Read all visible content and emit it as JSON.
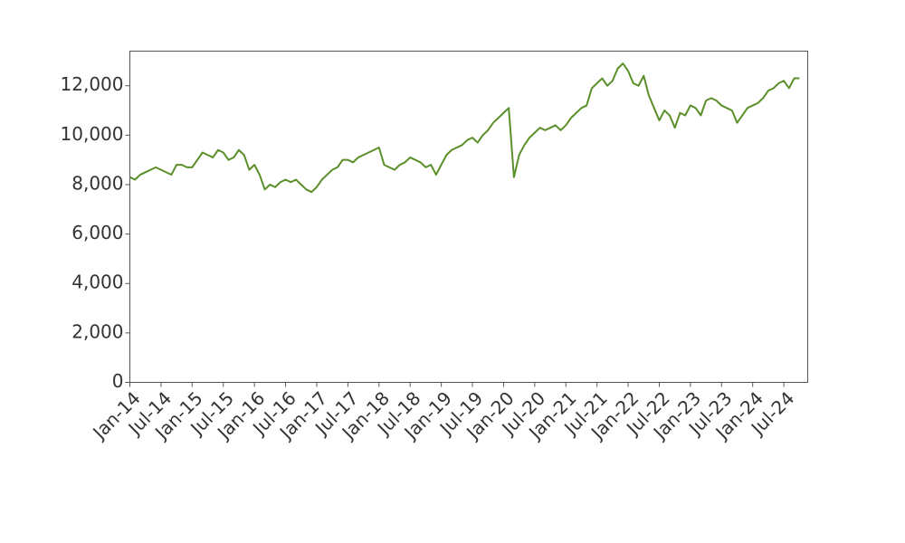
{
  "chart_data": {
    "type": "line",
    "x": [
      "Jan-14",
      "Feb-14",
      "Mar-14",
      "Apr-14",
      "May-14",
      "Jun-14",
      "Jul-14",
      "Aug-14",
      "Sep-14",
      "Oct-14",
      "Nov-14",
      "Dec-14",
      "Jan-15",
      "Feb-15",
      "Mar-15",
      "Apr-15",
      "May-15",
      "Jun-15",
      "Jul-15",
      "Aug-15",
      "Sep-15",
      "Oct-15",
      "Nov-15",
      "Dec-15",
      "Jan-16",
      "Feb-16",
      "Mar-16",
      "Apr-16",
      "May-16",
      "Jun-16",
      "Jul-16",
      "Aug-16",
      "Sep-16",
      "Oct-16",
      "Nov-16",
      "Dec-16",
      "Jan-17",
      "Feb-17",
      "Mar-17",
      "Apr-17",
      "May-17",
      "Jun-17",
      "Jul-17",
      "Aug-17",
      "Sep-17",
      "Oct-17",
      "Nov-17",
      "Dec-17",
      "Jan-18",
      "Feb-18",
      "Mar-18",
      "Apr-18",
      "May-18",
      "Jun-18",
      "Jul-18",
      "Aug-18",
      "Sep-18",
      "Oct-18",
      "Nov-18",
      "Dec-18",
      "Jan-19",
      "Feb-19",
      "Mar-19",
      "Apr-19",
      "May-19",
      "Jun-19",
      "Jul-19",
      "Aug-19",
      "Sep-19",
      "Oct-19",
      "Nov-19",
      "Dec-19",
      "Jan-20",
      "Feb-20",
      "Mar-20",
      "Apr-20",
      "May-20",
      "Jun-20",
      "Jul-20",
      "Aug-20",
      "Sep-20",
      "Oct-20",
      "Nov-20",
      "Dec-20",
      "Jan-21",
      "Feb-21",
      "Mar-21",
      "Apr-21",
      "May-21",
      "Jun-21",
      "Jul-21",
      "Aug-21",
      "Sep-21",
      "Oct-21",
      "Nov-21",
      "Dec-21",
      "Jan-22",
      "Feb-22",
      "Mar-22",
      "Apr-22",
      "May-22",
      "Jun-22",
      "Jul-22",
      "Aug-22",
      "Sep-22",
      "Oct-22",
      "Nov-22",
      "Dec-22",
      "Jan-23",
      "Feb-23",
      "Mar-23",
      "Apr-23",
      "May-23",
      "Jun-23",
      "Jul-23",
      "Aug-23",
      "Sep-23",
      "Oct-23",
      "Nov-23",
      "Dec-23",
      "Jan-24",
      "Feb-24",
      "Mar-24",
      "Apr-24",
      "May-24",
      "Jun-24",
      "Jul-24",
      "Aug-24",
      "Sep-24",
      "Oct-24"
    ],
    "values": [
      8300,
      8200,
      8400,
      8500,
      8600,
      8700,
      8600,
      8500,
      8400,
      8800,
      8800,
      8700,
      8700,
      9000,
      9300,
      9200,
      9100,
      9400,
      9300,
      9000,
      9100,
      9400,
      9200,
      8600,
      8800,
      8400,
      7800,
      8000,
      7900,
      8100,
      8200,
      8100,
      8200,
      8000,
      7800,
      7700,
      7900,
      8200,
      8400,
      8600,
      8700,
      9000,
      9000,
      8900,
      9100,
      9200,
      9300,
      9400,
      9500,
      8800,
      8700,
      8600,
      8800,
      8900,
      9100,
      9000,
      8900,
      8700,
      8800,
      8400,
      8800,
      9200,
      9400,
      9500,
      9600,
      9800,
      9900,
      9700,
      10000,
      10200,
      10500,
      10700,
      10900,
      11100,
      8300,
      9200,
      9600,
      9900,
      10100,
      10300,
      10200,
      10300,
      10400,
      10200,
      10400,
      10700,
      10900,
      11100,
      11200,
      11900,
      12100,
      12300,
      12000,
      12200,
      12700,
      12900,
      12600,
      12100,
      12000,
      12400,
      11600,
      11100,
      10600,
      11000,
      10800,
      10300,
      10900,
      10800,
      11200,
      11100,
      10800,
      11400,
      11500,
      11400,
      11200,
      11100,
      11000,
      10500,
      10800,
      11100,
      11200,
      11300,
      11500,
      11800,
      11900,
      12100,
      12200,
      11900,
      12300,
      12300
    ],
    "color": "#5a8f29",
    "xticks": [
      "Jan-14",
      "Jul-14",
      "Jan-15",
      "Jul-15",
      "Jan-16",
      "Jul-16",
      "Jan-17",
      "Jul-17",
      "Jan-18",
      "Jul-18",
      "Jan-19",
      "Jul-19",
      "Jan-20",
      "Jul-20",
      "Jan-21",
      "Jul-21",
      "Jan-22",
      "Jul-22",
      "Jan-23",
      "Jul-23",
      "Jan-24",
      "Jul-24"
    ],
    "ylim": [
      0,
      13400
    ],
    "yticks": [
      0,
      {
        "value": 2000,
        "label": "2,000"
      },
      {
        "value": 4000,
        "label": "4,000"
      },
      {
        "value": 6000,
        "label": "6,000"
      },
      {
        "value": 8000,
        "label": "8,000"
      },
      {
        "value": 10000,
        "label": "10,000"
      },
      {
        "value": 12000,
        "label": "12,000"
      }
    ],
    "grid": false
  }
}
